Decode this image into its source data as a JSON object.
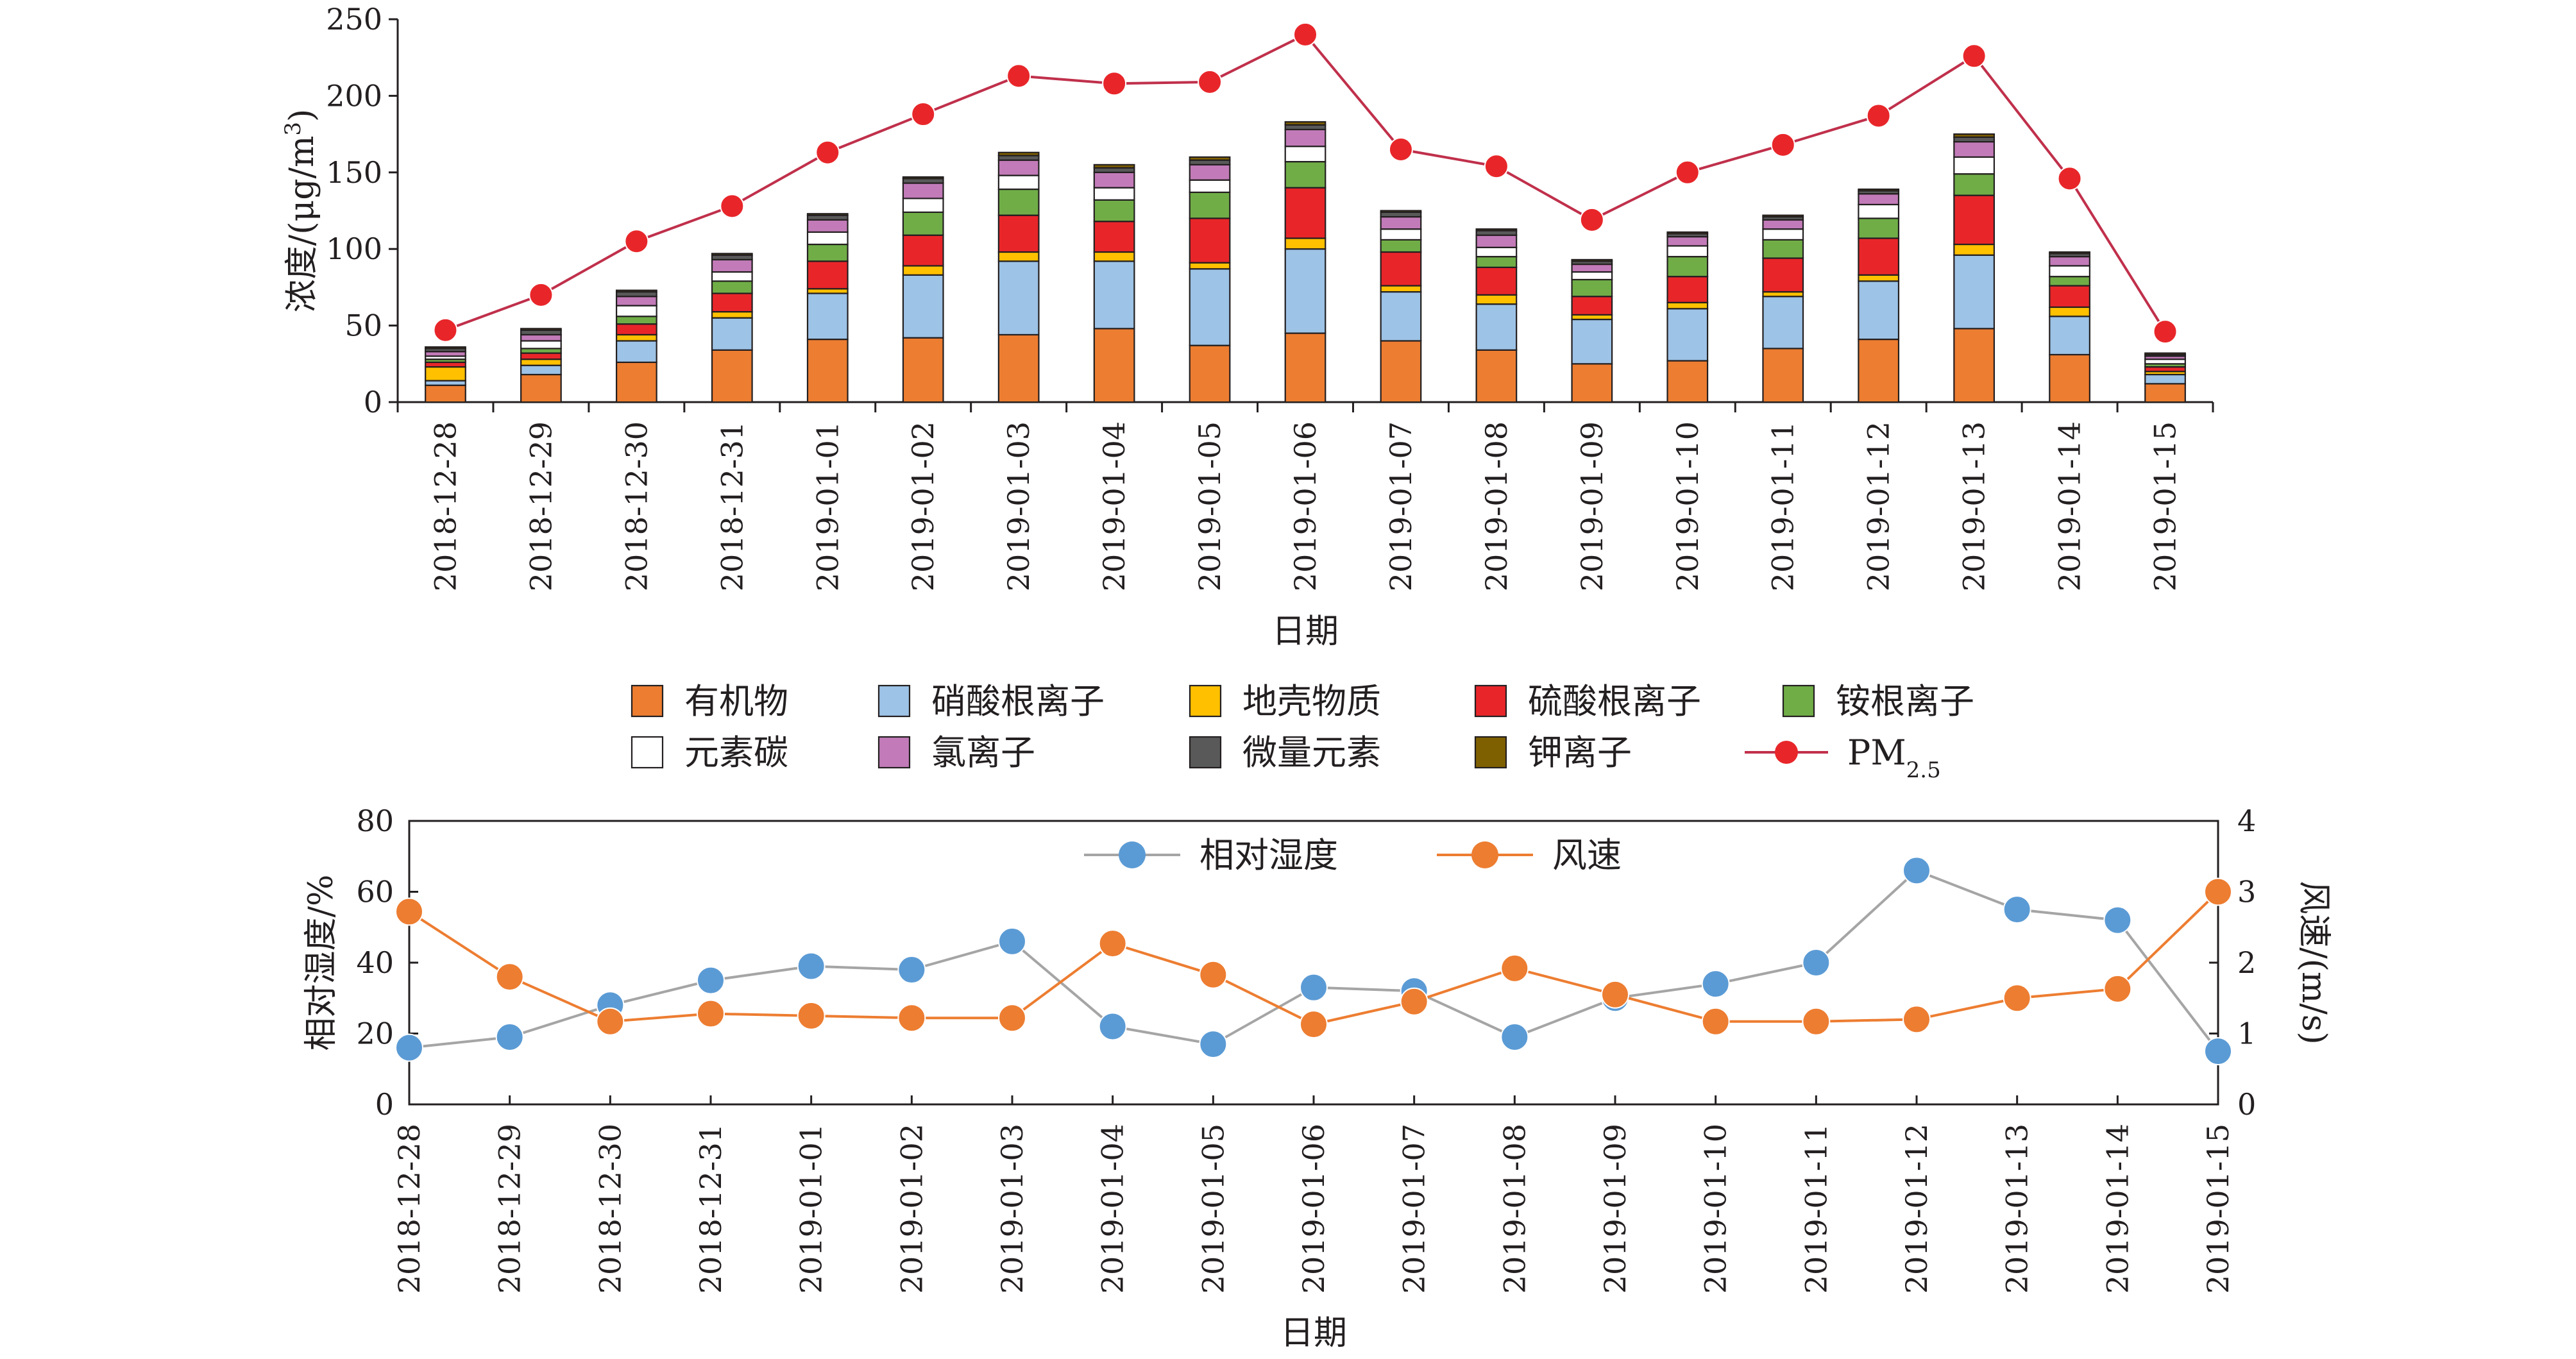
{
  "chart_data": [
    {
      "type": "bar",
      "stacked": true,
      "ylabel": "浓度/(μg/m³)",
      "ylabel_parts": {
        "prefix": "浓度/(μg/m",
        "sup": "3",
        "suffix": ")"
      },
      "xlabel": "日期",
      "ylim": [
        0,
        250
      ],
      "yticks": [
        0,
        50,
        100,
        150,
        200,
        250
      ],
      "categories": [
        "2018-12-28",
        "2018-12-29",
        "2018-12-30",
        "2018-12-31",
        "2019-01-01",
        "2019-01-02",
        "2019-01-03",
        "2019-01-04",
        "2019-01-05",
        "2019-01-06",
        "2019-01-07",
        "2019-01-08",
        "2019-01-09",
        "2019-01-10",
        "2019-01-11",
        "2019-01-12",
        "2019-01-13",
        "2019-01-14",
        "2019-01-15"
      ],
      "series": [
        {
          "name": "有机物",
          "color": "#ed7d31",
          "values": [
            11,
            18,
            26,
            34,
            41,
            42,
            44,
            48,
            37,
            45,
            40,
            34,
            25,
            27,
            35,
            41,
            48,
            31,
            12
          ]
        },
        {
          "name": "硝酸根离子",
          "color": "#9dc3e6",
          "values": [
            3,
            6,
            14,
            21,
            30,
            41,
            48,
            44,
            50,
            55,
            32,
            30,
            29,
            34,
            34,
            38,
            48,
            25,
            6
          ]
        },
        {
          "name": "地壳物质",
          "color": "#ffc000",
          "values": [
            9,
            4,
            4,
            4,
            3,
            6,
            6,
            6,
            4,
            7,
            4,
            6,
            3,
            4,
            3,
            4,
            7,
            6,
            2
          ]
        },
        {
          "name": "硫酸根离子",
          "color": "#e8262a",
          "values": [
            3,
            4,
            7,
            12,
            18,
            20,
            24,
            20,
            29,
            33,
            22,
            18,
            12,
            17,
            22,
            24,
            32,
            14,
            3
          ]
        },
        {
          "name": "铵根离子",
          "color": "#70ad47",
          "values": [
            2,
            3,
            5,
            8,
            11,
            15,
            17,
            14,
            17,
            17,
            8,
            7,
            11,
            13,
            12,
            13,
            14,
            6,
            2
          ]
        },
        {
          "name": "元素碳",
          "color": "#ffffff",
          "values": [
            2,
            5,
            7,
            6,
            8,
            9,
            9,
            8,
            8,
            10,
            7,
            6,
            5,
            7,
            7,
            9,
            11,
            7,
            3
          ]
        },
        {
          "name": "氯离子",
          "color": "#c27bb8",
          "values": [
            3,
            4,
            6,
            8,
            8,
            10,
            10,
            10,
            10,
            11,
            8,
            8,
            5,
            6,
            6,
            7,
            10,
            6,
            2
          ]
        },
        {
          "name": "微量元素",
          "color": "#595959",
          "values": [
            2,
            3,
            3,
            3,
            3,
            3,
            3,
            3,
            3,
            3,
            3,
            3,
            2,
            2,
            2,
            2,
            3,
            2,
            1
          ]
        },
        {
          "name": "钾离子",
          "color": "#7f6000",
          "values": [
            1,
            1,
            1,
            1,
            1,
            1,
            2,
            2,
            2,
            2,
            1,
            1,
            1,
            1,
            1,
            1,
            2,
            1,
            1
          ]
        }
      ],
      "line": {
        "name": "PM2.5",
        "name_parts": {
          "base": "PM",
          "sub": "2.5"
        },
        "color": "#e8262a",
        "line_color": "#c0304b",
        "values": [
          47,
          70,
          105,
          128,
          163,
          188,
          213,
          208,
          209,
          240,
          165,
          154,
          119,
          150,
          168,
          187,
          226,
          146,
          46
        ]
      },
      "legend_position": "bottom"
    },
    {
      "type": "line",
      "xlabel": "日期",
      "ylabel_left": "相对湿度/%",
      "ylabel_right": "风速/(m/s)",
      "ylim_left": [
        0,
        80
      ],
      "yticks_left": [
        0,
        20,
        40,
        60,
        80
      ],
      "ylim_right": [
        0,
        4
      ],
      "yticks_right": [
        0,
        1,
        2,
        3,
        4
      ],
      "categories": [
        "2018-12-28",
        "2018-12-29",
        "2018-12-30",
        "2018-12-31",
        "2019-01-01",
        "2019-01-02",
        "2019-01-03",
        "2019-01-04",
        "2019-01-05",
        "2019-01-06",
        "2019-01-07",
        "2019-01-08",
        "2019-01-09",
        "2019-01-10",
        "2019-01-11",
        "2019-01-12",
        "2019-01-13",
        "2019-01-14",
        "2019-01-15"
      ],
      "series": [
        {
          "name": "相对湿度",
          "axis": "left",
          "color": "#5b9bd5",
          "line_color": "#a5a5a5",
          "values": [
            16,
            19,
            28,
            35,
            39,
            38,
            46,
            22,
            17,
            33,
            32,
            19,
            30,
            34,
            40,
            66,
            55,
            52,
            15
          ]
        },
        {
          "name": "风速",
          "axis": "right",
          "color": "#ed7d31",
          "line_color": "#ed7d31",
          "values": [
            2.72,
            1.8,
            1.17,
            1.28,
            1.25,
            1.22,
            1.22,
            2.27,
            1.83,
            1.13,
            1.45,
            1.92,
            1.55,
            1.17,
            1.17,
            1.2,
            1.5,
            1.63,
            3.0
          ]
        }
      ],
      "legend_position": "top-center"
    }
  ]
}
